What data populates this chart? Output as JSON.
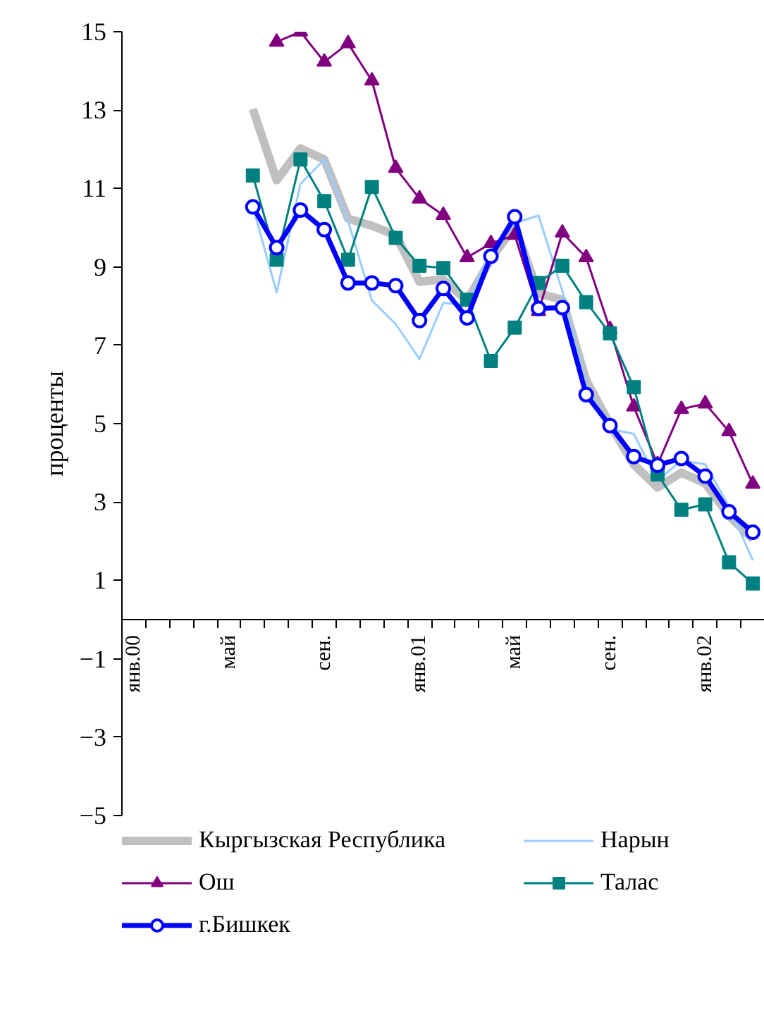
{
  "chart_data": {
    "type": "line",
    "ylabel": "проценты",
    "categories": [
      "янв.00",
      null,
      null,
      null,
      "май",
      null,
      null,
      null,
      "сен.",
      null,
      null,
      null,
      "янв.01",
      null,
      null,
      null,
      "май",
      null,
      null,
      null,
      "сен.",
      null,
      null,
      null,
      "янв.02",
      null,
      null
    ],
    "ylim": [
      -5,
      15
    ],
    "yticks": [
      -5,
      -3,
      -1,
      1,
      3,
      5,
      7,
      9,
      11,
      13,
      15
    ],
    "grid": false,
    "legend": "bottom",
    "series": [
      {
        "name": "Кыргызская Республика",
        "color": "#c0c0c0",
        "marker": "none",
        "values": [
          null,
          null,
          null,
          null,
          null,
          13.03,
          11.21,
          12.02,
          11.74,
          10.23,
          10.05,
          9.81,
          8.62,
          8.68,
          8.14,
          9.2,
          10.05,
          8.32,
          8.16,
          6.11,
          4.98,
          3.96,
          3.37,
          3.75,
          3.48,
          2.65,
          2.05
        ]
      },
      {
        "name": "Нарын",
        "color": "#99ccff",
        "marker": "none",
        "values": [
          null,
          null,
          null,
          null,
          null,
          10.53,
          8.35,
          11.12,
          11.74,
          10.17,
          8.14,
          7.54,
          6.65,
          8.08,
          8.02,
          9.4,
          10.11,
          10.31,
          8.38,
          5.99,
          4.86,
          4.74,
          3.54,
          4.06,
          3.96,
          2.89,
          1.51
        ]
      },
      {
        "name": "Ош",
        "color": "#800080",
        "marker": "triangle",
        "values": [
          null,
          null,
          null,
          null,
          null,
          null,
          14.74,
          15,
          14.23,
          14.7,
          13.75,
          11.52,
          10.74,
          10.32,
          9.24,
          9.6,
          9.81,
          7.87,
          9.87,
          9.24,
          7.41,
          5.43,
          3.96,
          5.37,
          5.51,
          4.8,
          3.46
        ]
      },
      {
        "name": "Талас",
        "color": "#008080",
        "marker": "square",
        "values": [
          null,
          null,
          null,
          null,
          null,
          11.33,
          9.18,
          11.74,
          10.68,
          9.18,
          11.04,
          9.74,
          9.03,
          8.97,
          8.16,
          6.6,
          7.45,
          8.59,
          9.03,
          8.1,
          7.3,
          5.93,
          3.7,
          2.8,
          2.94,
          1.46,
          0.92
        ]
      },
      {
        "name": "г.Бишкек",
        "color": "#0000ff",
        "marker": "circle",
        "values": [
          null,
          null,
          null,
          null,
          null,
          10.53,
          9.49,
          10.45,
          9.95,
          8.59,
          8.59,
          8.52,
          7.63,
          8.45,
          7.7,
          9.27,
          10.28,
          7.94,
          7.96,
          5.74,
          4.95,
          4.16,
          3.94,
          4.11,
          3.66,
          2.75,
          2.23
        ]
      }
    ]
  }
}
